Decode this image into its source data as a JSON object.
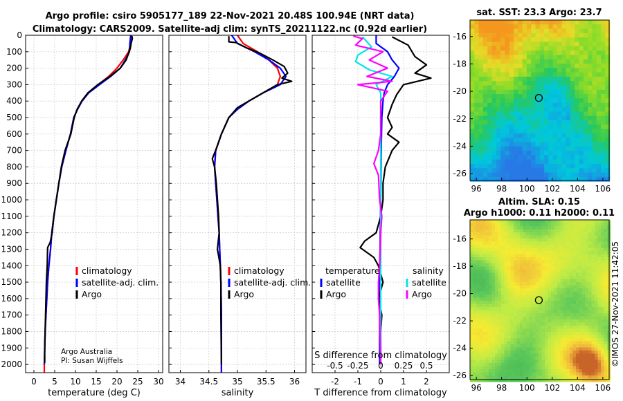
{
  "header": {
    "line1": "Argo profile: csiro 5905177_189 22-Nov-2021 20.48S 100.94E (NRT data)",
    "line2": "Climatology: CARS2009. Satellite-adj clim: synTS_20211122.nc (0.92d earlier)"
  },
  "credit": {
    "org": "Argo Australia",
    "pi": "PI: Susan Wijffels"
  },
  "copyright": "©IMOS 27-Nov-2021 11:42:05",
  "colors": {
    "climatology": "#ff0000",
    "satellite": "#0000ff",
    "argo": "#000000",
    "sat_sal": "#00e5e5",
    "argo_sal": "#ff00ff"
  },
  "chart_data": [
    {
      "type": "line",
      "id": "temperature",
      "xlabel": "temperature (deg C)",
      "xlim": [
        -2,
        31
      ],
      "ylim": [
        0,
        2050
      ],
      "xticks": [
        0,
        5,
        10,
        15,
        20,
        25,
        30
      ],
      "yticks": [
        0,
        100,
        200,
        300,
        400,
        500,
        600,
        700,
        800,
        900,
        1000,
        1100,
        1200,
        1300,
        1400,
        1500,
        1600,
        1700,
        1800,
        1900,
        2000
      ],
      "legend": [
        "climatology",
        "satellite-adj. clim.",
        "Argo"
      ],
      "series": [
        {
          "name": "climatology",
          "points": [
            [
              23.5,
              0
            ],
            [
              23.3,
              50
            ],
            [
              22.8,
              100
            ],
            [
              21.5,
              150
            ],
            [
              20,
              200
            ],
            [
              18,
              250
            ],
            [
              15.5,
              300
            ],
            [
              13,
              350
            ],
            [
              11.5,
              400
            ],
            [
              10.5,
              450
            ],
            [
              9.6,
              500
            ],
            [
              8.8,
              600
            ],
            [
              7.7,
              700
            ],
            [
              6.7,
              800
            ],
            [
              6,
              900
            ],
            [
              5.4,
              1000
            ],
            [
              4.8,
              1100
            ],
            [
              4.3,
              1200
            ],
            [
              4,
              1300
            ],
            [
              3.6,
              1400
            ],
            [
              3.3,
              1500
            ],
            [
              3.1,
              1600
            ],
            [
              2.9,
              1700
            ],
            [
              2.7,
              1800
            ],
            [
              2.6,
              1900
            ],
            [
              2.5,
              2000
            ],
            [
              2.5,
              2050
            ]
          ]
        },
        {
          "name": "satellite-adj. clim.",
          "points": [
            [
              23.3,
              0
            ],
            [
              23.1,
              50
            ],
            [
              23,
              100
            ],
            [
              22,
              150
            ],
            [
              20.8,
              200
            ],
            [
              18.5,
              250
            ],
            [
              15.8,
              300
            ],
            [
              13.2,
              350
            ],
            [
              11.6,
              400
            ],
            [
              10.5,
              450
            ],
            [
              9.6,
              500
            ],
            [
              8.8,
              600
            ],
            [
              7.7,
              700
            ],
            [
              6.7,
              800
            ],
            [
              6,
              900
            ],
            [
              5.4,
              1000
            ],
            [
              4.8,
              1100
            ],
            [
              4.3,
              1200
            ],
            [
              4,
              1300
            ],
            [
              3.6,
              1400
            ],
            [
              3.3,
              1500
            ],
            [
              3.1,
              1600
            ],
            [
              2.9,
              1700
            ],
            [
              2.7,
              1800
            ],
            [
              2.6,
              1900
            ],
            [
              2.5,
              2000
            ]
          ]
        },
        {
          "name": "Argo",
          "points": [
            [
              23.6,
              5
            ],
            [
              23.7,
              20
            ],
            [
              23.4,
              50
            ],
            [
              23.2,
              80
            ],
            [
              22.8,
              110
            ],
            [
              22.2,
              150
            ],
            [
              20.8,
              200
            ],
            [
              18.3,
              250
            ],
            [
              15.4,
              300
            ],
            [
              13,
              350
            ],
            [
              11.5,
              400
            ],
            [
              10.4,
              450
            ],
            [
              9.7,
              500
            ],
            [
              8.9,
              600
            ],
            [
              7.5,
              700
            ],
            [
              6.6,
              800
            ],
            [
              6,
              900
            ],
            [
              5.4,
              1000
            ],
            [
              4.8,
              1100
            ],
            [
              4.4,
              1200
            ],
            [
              3.9,
              1260
            ],
            [
              3.3,
              1290
            ],
            [
              3.2,
              1400
            ],
            [
              3,
              1500
            ],
            [
              2.9,
              1600
            ],
            [
              2.8,
              1700
            ],
            [
              2.7,
              1800
            ],
            [
              2.6,
              1900
            ],
            [
              2.6,
              1990
            ]
          ]
        }
      ]
    },
    {
      "type": "line",
      "id": "salinity",
      "xlabel": "salinity",
      "xlim": [
        33.8,
        36.2
      ],
      "ylim": [
        0,
        2050
      ],
      "xticks": [
        34,
        34.5,
        35,
        35.5,
        36
      ],
      "legend": [
        "climatology",
        "satellite-adj. clim.",
        "Argo"
      ],
      "series": [
        {
          "name": "climatology",
          "points": [
            [
              35,
              0
            ],
            [
              35.1,
              50
            ],
            [
              35.35,
              100
            ],
            [
              35.55,
              150
            ],
            [
              35.7,
              200
            ],
            [
              35.75,
              250
            ],
            [
              35.7,
              300
            ],
            [
              35.45,
              350
            ],
            [
              35.2,
              400
            ],
            [
              35,
              450
            ],
            [
              34.85,
              500
            ],
            [
              34.72,
              600
            ],
            [
              34.62,
              700
            ],
            [
              34.6,
              800
            ],
            [
              34.62,
              900
            ],
            [
              34.64,
              1000
            ],
            [
              34.66,
              1100
            ],
            [
              34.68,
              1200
            ],
            [
              34.69,
              1300
            ],
            [
              34.7,
              1400
            ],
            [
              34.71,
              1500
            ],
            [
              34.72,
              1700
            ],
            [
              34.72,
              2050
            ]
          ]
        },
        {
          "name": "satellite-adj. clim.",
          "points": [
            [
              34.9,
              0
            ],
            [
              35,
              50
            ],
            [
              35.3,
              100
            ],
            [
              35.55,
              150
            ],
            [
              35.75,
              200
            ],
            [
              35.85,
              250
            ],
            [
              35.75,
              300
            ],
            [
              35.45,
              350
            ],
            [
              35.2,
              400
            ],
            [
              35,
              450
            ],
            [
              34.85,
              500
            ],
            [
              34.72,
              600
            ],
            [
              34.62,
              700
            ],
            [
              34.6,
              800
            ],
            [
              34.62,
              900
            ],
            [
              34.64,
              1000
            ],
            [
              34.66,
              1100
            ],
            [
              34.68,
              1200
            ],
            [
              34.69,
              1300
            ],
            [
              34.7,
              1400
            ],
            [
              34.71,
              1500
            ],
            [
              34.72,
              1700
            ],
            [
              34.72,
              2050
            ]
          ]
        },
        {
          "name": "Argo",
          "points": [
            [
              34.85,
              5
            ],
            [
              34.85,
              40
            ],
            [
              34.98,
              45
            ],
            [
              35.15,
              75
            ],
            [
              35.4,
              110
            ],
            [
              35.62,
              150
            ],
            [
              35.82,
              190
            ],
            [
              35.88,
              230
            ],
            [
              35.78,
              260
            ],
            [
              35.95,
              280
            ],
            [
              35.7,
              300
            ],
            [
              35.5,
              340
            ],
            [
              35.25,
              390
            ],
            [
              35,
              440
            ],
            [
              34.85,
              500
            ],
            [
              34.72,
              600
            ],
            [
              34.62,
              700
            ],
            [
              34.56,
              750
            ],
            [
              34.6,
              800
            ],
            [
              34.63,
              900
            ],
            [
              34.65,
              1000
            ],
            [
              34.67,
              1100
            ],
            [
              34.68,
              1200
            ],
            [
              34.65,
              1300
            ],
            [
              34.7,
              1400
            ],
            [
              34.71,
              1500
            ],
            [
              34.71,
              1700
            ],
            [
              34.72,
              2000
            ]
          ]
        }
      ]
    },
    {
      "type": "line",
      "id": "difference",
      "xlabel": "T difference from climatology",
      "xlabel2": "S difference from climatology",
      "xlim": [
        -3,
        3
      ],
      "ylim": [
        0,
        2050
      ],
      "xticks": [
        -2,
        -1,
        0,
        1,
        2
      ],
      "xticks_s": [
        "-0.5",
        "-0.25",
        "0",
        "0.25",
        "0.5"
      ],
      "legend": {
        "temperature_title": "temperature",
        "salinity_title": "salinity",
        "satellite": "satellite",
        "argo": "Argo"
      },
      "series": [
        {
          "name": "temperature satellite",
          "points": [
            [
              -0.2,
              0
            ],
            [
              -0.2,
              50
            ],
            [
              0.3,
              100
            ],
            [
              0.5,
              150
            ],
            [
              0.8,
              200
            ],
            [
              0.6,
              250
            ],
            [
              0.3,
              300
            ],
            [
              0.15,
              350
            ],
            [
              0.1,
              400
            ],
            [
              0.05,
              500
            ],
            [
              0.02,
              700
            ],
            [
              0,
              1000
            ],
            [
              -0.05,
              1500
            ],
            [
              -0.05,
              2000
            ]
          ]
        },
        {
          "name": "temperature Argo",
          "points": [
            [
              0.5,
              10
            ],
            [
              1.2,
              60
            ],
            [
              1.5,
              130
            ],
            [
              2,
              180
            ],
            [
              1.5,
              230
            ],
            [
              2.2,
              260
            ],
            [
              1,
              300
            ],
            [
              0.7,
              360
            ],
            [
              0.5,
              420
            ],
            [
              0.3,
              500
            ],
            [
              0.5,
              560
            ],
            [
              0.3,
              600
            ],
            [
              0.8,
              650
            ],
            [
              0.5,
              700
            ],
            [
              0.2,
              800
            ],
            [
              0.1,
              900
            ],
            [
              0.1,
              1000
            ],
            [
              0,
              1100
            ],
            [
              -0.2,
              1200
            ],
            [
              -0.7,
              1250
            ],
            [
              -0.9,
              1290
            ],
            [
              -0.3,
              1350
            ],
            [
              -0.1,
              1400
            ],
            [
              0.1,
              1500
            ],
            [
              -0.1,
              1600
            ],
            [
              0.05,
              1700
            ],
            [
              0,
              1800
            ],
            [
              0,
              2000
            ]
          ]
        },
        {
          "name": "salinity satellite",
          "points": [
            [
              -0.8,
              10
            ],
            [
              -0.4,
              70
            ],
            [
              -1,
              120
            ],
            [
              -1.1,
              160
            ],
            [
              -0.5,
              210
            ],
            [
              0.5,
              250
            ],
            [
              -0.2,
              300
            ],
            [
              0,
              350
            ],
            [
              0,
              400
            ],
            [
              0,
              500
            ],
            [
              0,
              700
            ],
            [
              0,
              900
            ],
            [
              0,
              1100
            ],
            [
              0,
              1500
            ],
            [
              0,
              2000
            ]
          ]
        },
        {
          "name": "salinity Argo",
          "points": [
            [
              -1.2,
              5
            ],
            [
              -0.8,
              20
            ],
            [
              -1.1,
              60
            ],
            [
              0.1,
              100
            ],
            [
              -0.5,
              150
            ],
            [
              0.3,
              200
            ],
            [
              -0.6,
              250
            ],
            [
              0.5,
              280
            ],
            [
              -1,
              300
            ],
            [
              0.3,
              340
            ],
            [
              0,
              400
            ],
            [
              0,
              600
            ],
            [
              -0.1,
              700
            ],
            [
              -0.3,
              780
            ],
            [
              -0.1,
              850
            ],
            [
              -0.05,
              1000
            ],
            [
              0.05,
              1100
            ],
            [
              0,
              1200
            ],
            [
              -0.05,
              1400
            ],
            [
              -0.1,
              1500
            ],
            [
              -0.1,
              1600
            ],
            [
              -0.05,
              1700
            ],
            [
              0,
              2000
            ]
          ]
        }
      ]
    },
    {
      "type": "heatmap",
      "id": "sst-map",
      "title": "sat. SST: 23.3 Argo: 23.7",
      "xlim": [
        95.5,
        106.5
      ],
      "ylim": [
        -26.5,
        -14.8
      ],
      "xticks": [
        96,
        98,
        100,
        102,
        104,
        106
      ],
      "yticks": [
        -16,
        -18,
        -20,
        -22,
        -24,
        -26
      ],
      "marker": [
        100.94,
        -20.48
      ]
    },
    {
      "type": "heatmap",
      "id": "sla-map",
      "title1": "Altim. SLA: 0.15",
      "title2": "Argo h1000: 0.11 h2000: 0.11",
      "xlim": [
        95.5,
        106.5
      ],
      "ylim": [
        -26.3,
        -14.6
      ],
      "xticks": [
        96,
        98,
        100,
        102,
        104,
        106
      ],
      "yticks": [
        -16,
        -18,
        -20,
        -22,
        -24,
        -26
      ],
      "marker": [
        100.94,
        -20.48
      ]
    }
  ]
}
